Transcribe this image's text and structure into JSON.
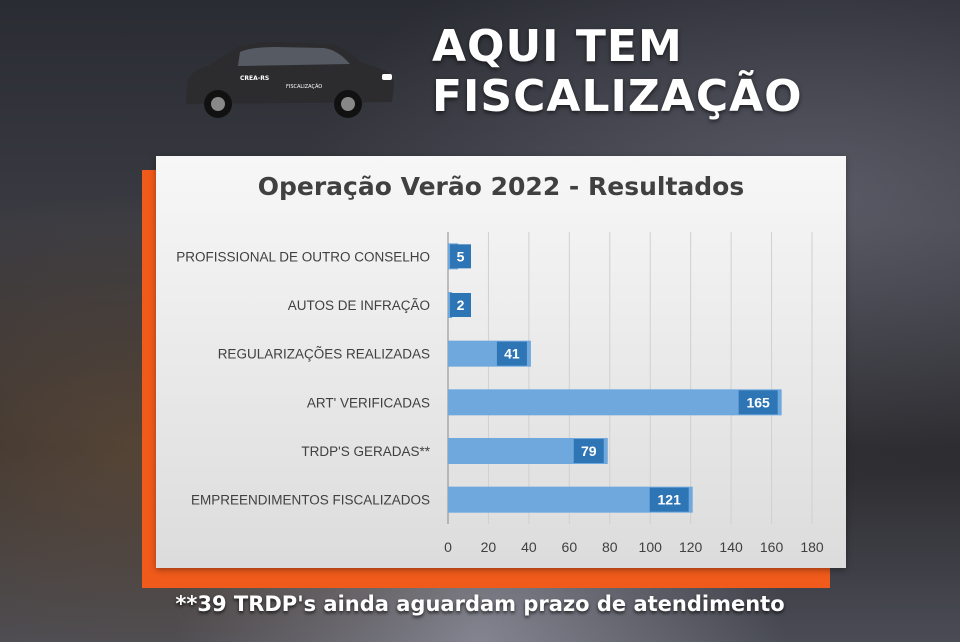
{
  "headline": [
    "AQUI TEM",
    "FISCALIZAÇÃO"
  ],
  "vehicle": {
    "badge": "CREA-RS",
    "door_text": "FISCALIZAÇÃO",
    "body_color": "#2c2c2e"
  },
  "footnote": "**39 TRDP's ainda aguardam prazo de atendimento",
  "colors": {
    "bar": "#6fa8dc",
    "label_box": "#2e75b6",
    "accent": "#f05a1a",
    "title": "#404040",
    "axis_text": "#404040"
  },
  "chart_data": {
    "type": "bar",
    "orientation": "horizontal",
    "title": "Operação Verão 2022 - Resultados",
    "xlabel": "",
    "ylabel": "",
    "categories": [
      "PROFISSIONAL DE OUTRO CONSELHO",
      "AUTOS DE INFRAÇÃO",
      "REGULARIZAÇÕES REALIZADAS",
      "ART' VERIFICADAS",
      "TRDP'S GERADAS**",
      "EMPREENDIMENTOS FISCALIZADOS"
    ],
    "values": [
      5,
      2,
      41,
      165,
      79,
      121
    ],
    "xlim": [
      0,
      180
    ],
    "xticks": [
      0,
      20,
      40,
      60,
      80,
      100,
      120,
      140,
      160,
      180
    ],
    "grid": "vertical",
    "data_labels": true,
    "legend": "none"
  }
}
